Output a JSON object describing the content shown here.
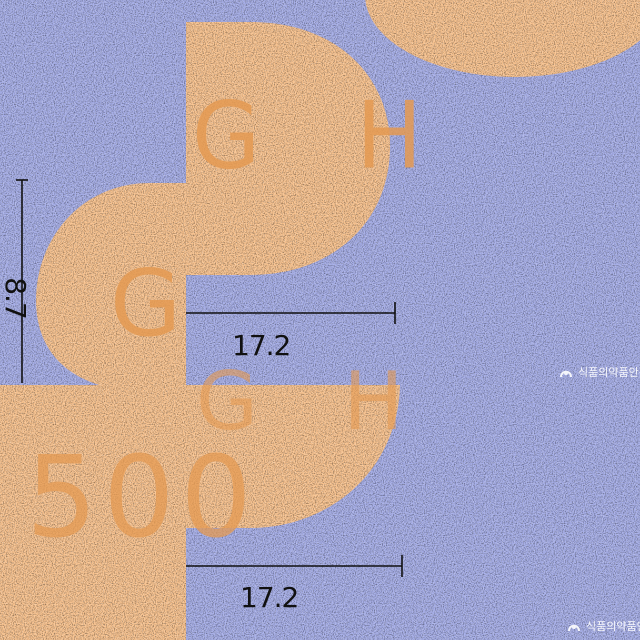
{
  "image": {
    "background_color": "#a6aee8",
    "tablet_color": "#f8c28e",
    "imprint_color": "#e59a52"
  },
  "tablets": {
    "top_right_partial": {},
    "upper_back": {
      "imprint": "G H"
    },
    "upper_front": {
      "imprint": "G"
    },
    "lower_back": {
      "imprint": "G H"
    },
    "lower_front": {
      "imprint": "500"
    }
  },
  "dimensions": {
    "upper_width": "17.2",
    "upper_height": "8.7",
    "lower_width": "17.2"
  },
  "watermark": {
    "text": "식품의약품안전처"
  }
}
